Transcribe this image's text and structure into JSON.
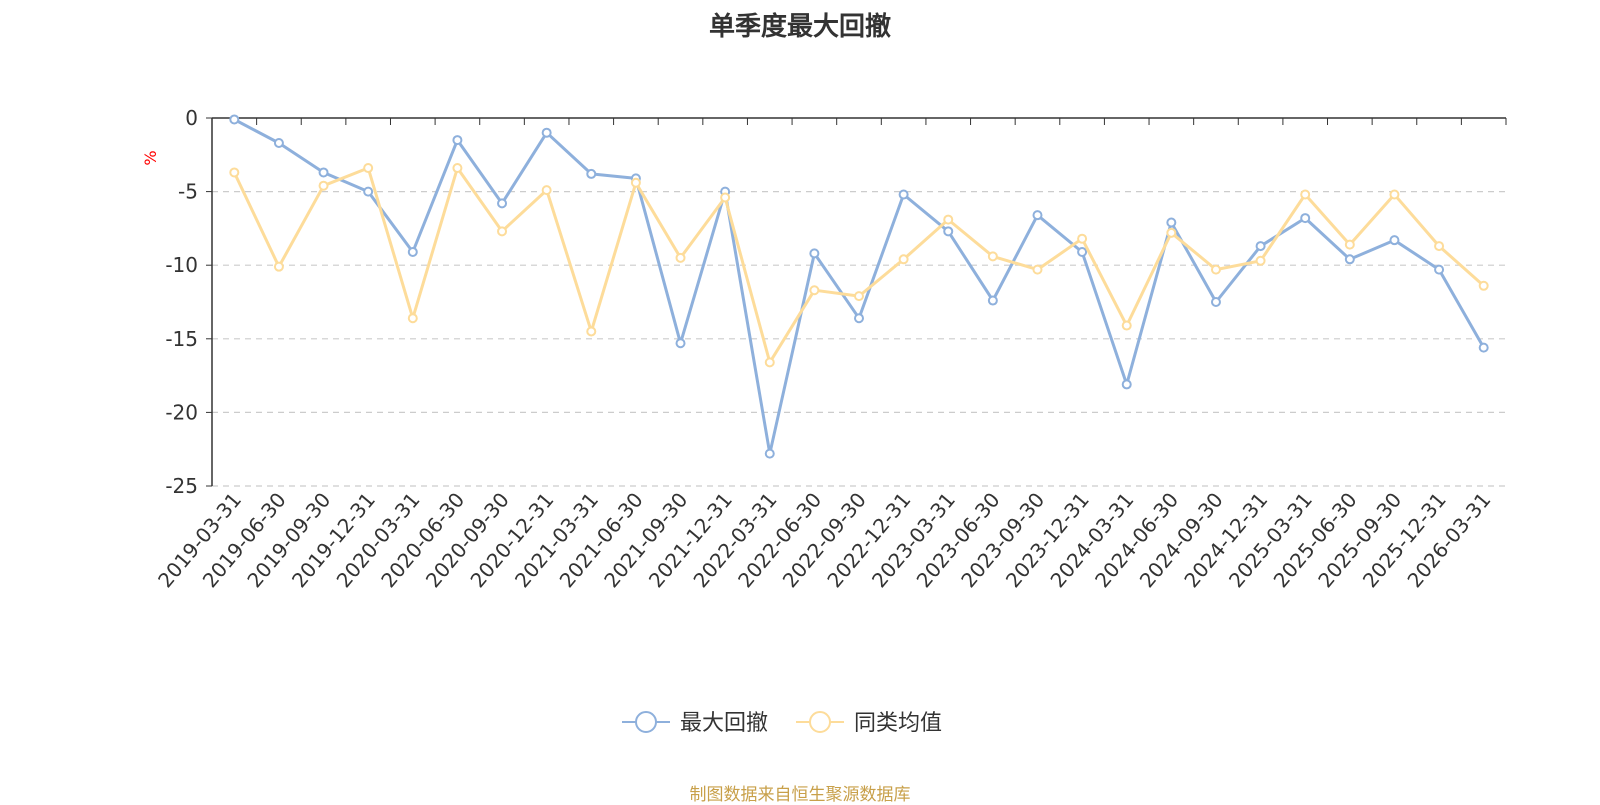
{
  "chart_data": {
    "type": "line",
    "title": "单季度最大回撤",
    "ylabel": "%",
    "ylim": [
      -25,
      0
    ],
    "yticks": [
      0,
      -5,
      -10,
      -15,
      -20,
      -25
    ],
    "grid": true,
    "legend_position": "bottom",
    "categories": [
      "2019-03-31",
      "2019-06-30",
      "2019-09-30",
      "2019-12-31",
      "2020-03-31",
      "2020-06-30",
      "2020-09-30",
      "2020-12-31",
      "2021-03-31",
      "2021-06-30",
      "2021-09-30",
      "2021-12-31",
      "2022-03-31",
      "2022-06-30",
      "2022-09-30",
      "2022-12-31",
      "2023-03-31",
      "2023-06-30",
      "2023-09-30",
      "2023-12-31",
      "2024-03-31",
      "2024-06-30",
      "2024-09-30",
      "2024-12-31",
      "2025-03-31",
      "2025-06-30",
      "2025-09-30",
      "2025-12-31",
      "2026-03-31"
    ],
    "series": [
      {
        "name": "最大回撤",
        "color": "#8eb0dc",
        "values": [
          -0.1,
          -1.7,
          -3.7,
          -5.0,
          -9.1,
          -1.5,
          -5.8,
          -1.0,
          -3.8,
          -4.1,
          -15.3,
          -5.0,
          -22.8,
          -9.2,
          -13.6,
          -5.2,
          -7.7,
          -12.4,
          -6.6,
          -9.1,
          -18.1,
          -7.1,
          -12.5,
          -8.7,
          -6.8,
          -9.6,
          -8.3,
          -10.3,
          -15.6
        ]
      },
      {
        "name": "同类均值",
        "color": "#fddc9a",
        "values": [
          -3.7,
          -10.1,
          -4.6,
          -3.4,
          -13.6,
          -3.4,
          -7.7,
          -4.9,
          -14.5,
          -4.4,
          -9.5,
          -5.4,
          -16.6,
          -11.7,
          -12.1,
          -9.6,
          -6.9,
          -9.4,
          -10.3,
          -8.2,
          -14.1,
          -7.8,
          -10.3,
          -9.7,
          -5.2,
          -8.6,
          -5.2,
          -8.7,
          -11.4
        ]
      }
    ]
  },
  "source_note": "制图数据来自恒生聚源数据库"
}
